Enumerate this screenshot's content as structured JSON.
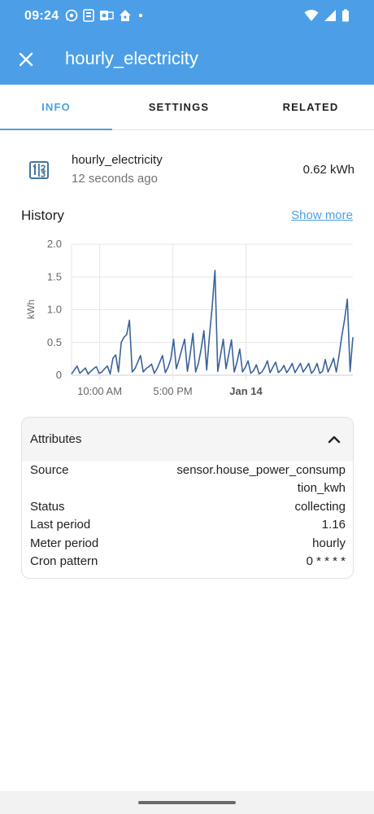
{
  "status_bar": {
    "time": "09:24",
    "left_icons": [
      "whatsapp-icon",
      "document-icon",
      "outlook-icon",
      "home-assistant-icon",
      "dot-icon"
    ],
    "right_icons": [
      "wifi-icon",
      "signal-icon",
      "battery-icon"
    ]
  },
  "app_bar": {
    "title": "hourly_electricity",
    "background": "#4c9fe6"
  },
  "tabs": [
    {
      "label": "INFO",
      "active": true
    },
    {
      "label": "SETTINGS",
      "active": false
    },
    {
      "label": "RELATED",
      "active": false
    }
  ],
  "entity": {
    "icon": "counter-icon",
    "name": "hourly_electricity",
    "last_changed": "12 seconds ago",
    "state": "0.62 kWh"
  },
  "history": {
    "title": "History",
    "show_more": "Show more"
  },
  "chart_data": {
    "type": "line",
    "ylabel": "kWh",
    "xlabel": "",
    "ylim": [
      0,
      2.0
    ],
    "y_ticks": [
      "0",
      "0.5",
      "1.0",
      "1.5",
      "2.0"
    ],
    "x_ticks": [
      {
        "label": "10:00 AM",
        "pos": 0.1,
        "bold": false
      },
      {
        "label": "5:00 PM",
        "pos": 0.36,
        "bold": false
      },
      {
        "label": "Jan 14",
        "pos": 0.62,
        "bold": true
      }
    ],
    "grid": true,
    "color": "#3b6299",
    "series": [
      {
        "values": [
          0.02,
          0.08,
          0.14,
          0.03,
          0.07,
          0.11,
          0.02,
          0.06,
          0.1,
          0.13,
          0.03,
          0.05,
          0.1,
          0.14,
          0.02,
          0.26,
          0.31,
          0.05,
          0.5,
          0.58,
          0.62,
          0.84,
          0.05,
          0.1,
          0.2,
          0.3,
          0.05,
          0.1,
          0.13,
          0.17,
          0.03,
          0.1,
          0.2,
          0.3,
          0.04,
          0.12,
          0.25,
          0.55,
          0.1,
          0.24,
          0.4,
          0.55,
          0.06,
          0.32,
          0.64,
          0.05,
          0.18,
          0.4,
          0.68,
          0.08,
          0.6,
          1.05,
          1.6,
          0.06,
          0.3,
          0.55,
          0.1,
          0.32,
          0.54,
          0.05,
          0.2,
          0.4,
          0.05,
          0.12,
          0.22,
          0.03,
          0.07,
          0.16,
          0.02,
          0.05,
          0.12,
          0.22,
          0.04,
          0.12,
          0.2,
          0.04,
          0.08,
          0.15,
          0.04,
          0.1,
          0.18,
          0.04,
          0.11,
          0.18,
          0.05,
          0.11,
          0.18,
          0.03,
          0.08,
          0.18,
          0.03,
          0.06,
          0.24,
          0.05,
          0.15,
          0.26,
          0.05,
          0.3,
          0.6,
          0.85,
          1.16,
          0.06,
          0.58
        ]
      }
    ]
  },
  "attributes": {
    "title": "Attributes",
    "rows": [
      {
        "key": "Source",
        "value_lines": [
          "sensor.house_power_consump",
          "tion_kwh"
        ]
      },
      {
        "key": "Status",
        "value_lines": [
          "collecting"
        ]
      },
      {
        "key": "Last period",
        "value_lines": [
          "1.16"
        ]
      },
      {
        "key": "Meter period",
        "value_lines": [
          "hourly"
        ]
      },
      {
        "key": "Cron pattern",
        "value_lines": [
          "0 * * * *"
        ]
      }
    ]
  }
}
